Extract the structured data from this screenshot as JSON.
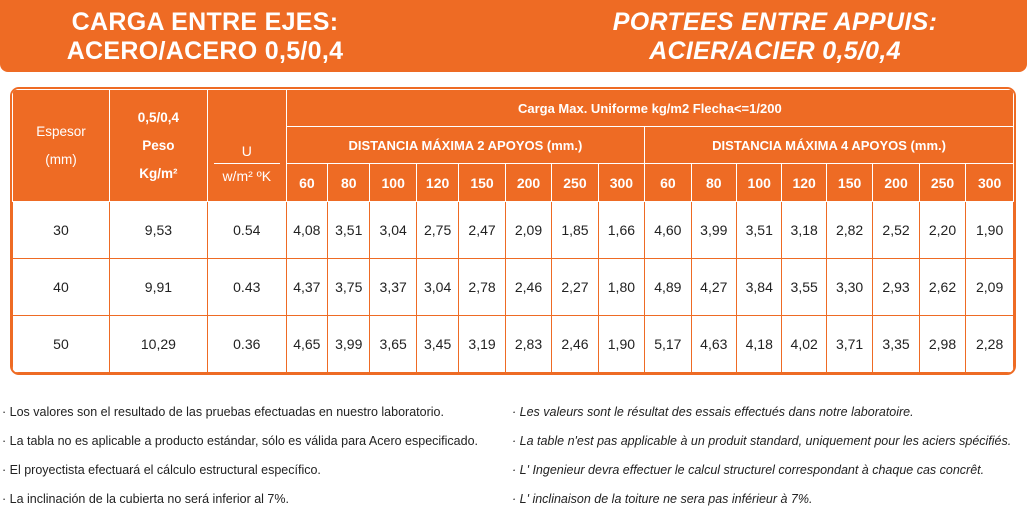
{
  "title": {
    "es_line1": "CARGA ENTRE EJES:",
    "es_line2": "ACERO/ACERO 0,5/0,4",
    "fr_line1": "PORTEES ENTRE APPUIS:",
    "fr_line2": "ACIER/ACIER 0,5/0,4"
  },
  "table": {
    "col_espesor_1": "Espesor",
    "col_espesor_2": "(mm)",
    "col_peso_1": "0,5/0,4",
    "col_peso_2": "Peso",
    "col_peso_3": "Kg/m²",
    "col_u_1": "U",
    "col_u_2": "w/m² ºK",
    "load_header": "Carga Max. Uniforme kg/m2 Flecha<=1/200",
    "group_2": "DISTANCIA MÁXIMA 2 APOYOS (mm.)",
    "group_4": "DISTANCIA MÁXIMA 4 APOYOS (mm.)",
    "spans": [
      "60",
      "80",
      "100",
      "120",
      "150",
      "200",
      "250",
      "300"
    ],
    "rows": [
      {
        "espesor": "30",
        "peso": "9,53",
        "u": "0.54",
        "apoyos2": [
          "4,08",
          "3,51",
          "3,04",
          "2,75",
          "2,47",
          "2,09",
          "1,85",
          "1,66"
        ],
        "apoyos4": [
          "4,60",
          "3,99",
          "3,51",
          "3,18",
          "2,82",
          "2,52",
          "2,20",
          "1,90"
        ]
      },
      {
        "espesor": "40",
        "peso": "9,91",
        "u": "0.43",
        "apoyos2": [
          "4,37",
          "3,75",
          "3,37",
          "3,04",
          "2,78",
          "2,46",
          "2,27",
          "1,80"
        ],
        "apoyos4": [
          "4,89",
          "4,27",
          "3,84",
          "3,55",
          "3,30",
          "2,93",
          "2,62",
          "2,09"
        ]
      },
      {
        "espesor": "50",
        "peso": "10,29",
        "u": "0.36",
        "apoyos2": [
          "4,65",
          "3,99",
          "3,65",
          "3,45",
          "3,19",
          "2,83",
          "2,46",
          "1,90"
        ],
        "apoyos4": [
          "5,17",
          "4,63",
          "4,18",
          "4,02",
          "3,71",
          "3,35",
          "2,98",
          "2,28"
        ]
      }
    ]
  },
  "notes_es": [
    "· Los valores son el resultado de las pruebas efectuadas en nuestro laboratorio.",
    "· La tabla no es aplicable a producto estándar, sólo es válida para Acero especificado.",
    "· El proyectista efectuará el cálculo estructural específico.",
    "· La inclinación de la cubierta no será inferior al 7%."
  ],
  "notes_fr": [
    "· Les valeurs sont le résultat des essais effectués dans notre laboratoire.",
    "· La table n'est pas applicable à un produit standard, uniquement pour les aciers spécifiés.",
    "· L' Ingenieur devra effectuer le calcul structurel correspondant à chaque cas concrêt.",
    "· L' inclinaison de la toiture ne sera pas inférieur à 7%."
  ],
  "colors": {
    "accent": "#ee6b24",
    "text": "#222222"
  }
}
